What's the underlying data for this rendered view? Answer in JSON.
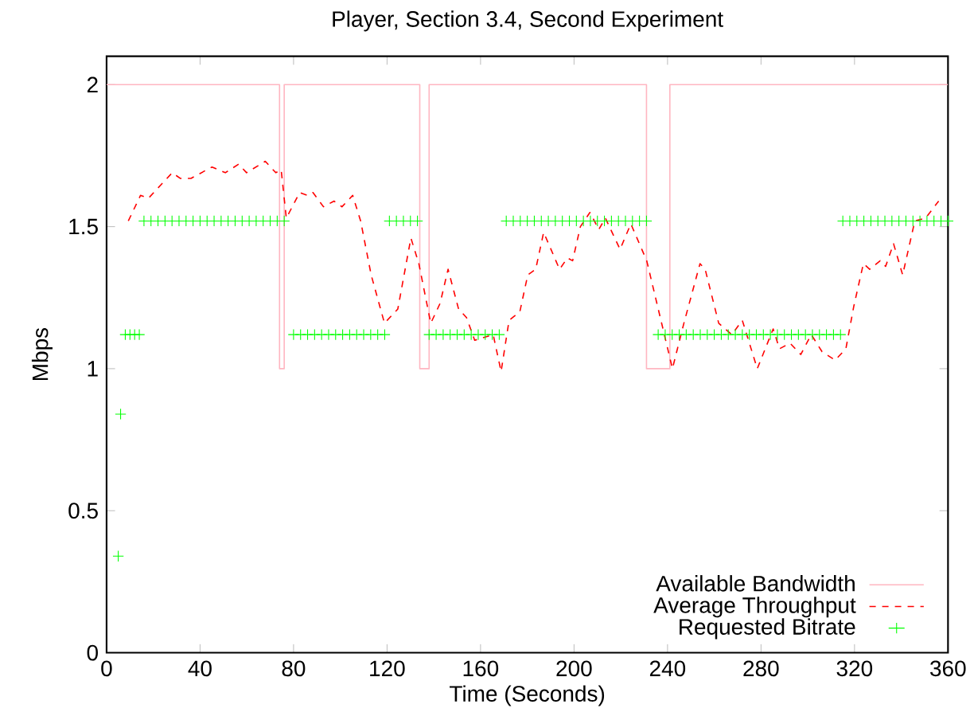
{
  "chart_data": {
    "type": "line",
    "title": "Player, Section 3.4, Second Experiment",
    "xlabel": "Time (Seconds)",
    "ylabel": "Mbps",
    "xlim": [
      0,
      360
    ],
    "xticks": [
      0,
      40,
      80,
      120,
      160,
      200,
      240,
      280,
      320,
      360
    ],
    "ylim": [
      0,
      2.1
    ],
    "yticks": [
      0,
      0.5,
      1,
      1.5,
      2
    ],
    "grid": false,
    "legend": "bottom right",
    "series": [
      {
        "name": "Available Bandwidth",
        "type": "step",
        "color": "#ffb6c1",
        "line_style": "solid",
        "marker": "none",
        "x": [
          0,
          74,
          76,
          134,
          138,
          231,
          241,
          360
        ],
        "values": [
          2,
          1,
          2,
          1,
          2,
          1,
          2,
          2
        ]
      },
      {
        "name": "Average Throughput",
        "color": "#ff0000",
        "line_style": "dashed",
        "marker": "none",
        "x": [
          9.3,
          14.5,
          17.9,
          28.1,
          31.5,
          36.1,
          45.1,
          50.8,
          56.5,
          59.9,
          67.9,
          72.4,
          74.7,
          76.9,
          82.6,
          86,
          88.3,
          92.8,
          97.3,
          100.7,
          105.3,
          108.7,
          113.2,
          118.9,
          124.6,
          130.2,
          133.6,
          138.7,
          142.7,
          146.1,
          150.6,
          154,
          157.5,
          165.4,
          168.8,
          172.2,
          176.8,
          180.2,
          183.6,
          187,
          193.8,
          197.2,
          199.4,
          202.7,
          206.8,
          210.6,
          213.4,
          219.7,
          224.3,
          231.1,
          236.9,
          242.1,
          247,
          253.9,
          256.1,
          261.9,
          267.5,
          272,
          278.4,
          285.2,
          287.9,
          292.4,
          297,
          301.5,
          306.1,
          311.7,
          316.3,
          319.7,
          323.8,
          326.5,
          331,
          333.3,
          336.7,
          340.6,
          345.8,
          350.4,
          356
        ],
        "values": [
          1.52,
          1.61,
          1.6,
          1.69,
          1.67,
          1.67,
          1.71,
          1.69,
          1.72,
          1.69,
          1.73,
          1.69,
          1.7,
          1.53,
          1.62,
          1.61,
          1.62,
          1.57,
          1.59,
          1.57,
          1.61,
          1.52,
          1.33,
          1.16,
          1.21,
          1.46,
          1.37,
          1.16,
          1.23,
          1.35,
          1.21,
          1.18,
          1.1,
          1.12,
          0.99,
          1.17,
          1.2,
          1.33,
          1.35,
          1.48,
          1.35,
          1.39,
          1.38,
          1.5,
          1.55,
          1.49,
          1.53,
          1.42,
          1.51,
          1.38,
          1.18,
          1.0,
          1.16,
          1.37,
          1.35,
          1.16,
          1.12,
          1.17,
          1.0,
          1.14,
          1.07,
          1.09,
          1.05,
          1.12,
          1.06,
          1.03,
          1.07,
          1.22,
          1.37,
          1.35,
          1.38,
          1.36,
          1.44,
          1.33,
          1.52,
          1.53,
          1.59
        ]
      },
      {
        "name": "Requested Bitrate",
        "type": "scatter",
        "color": "#00ff00",
        "marker": "cross",
        "x": [
          5,
          6,
          8,
          10,
          12,
          14,
          16,
          19,
          22,
          25,
          28,
          31,
          34,
          37,
          40,
          43,
          46,
          49,
          52,
          55,
          58,
          61,
          64,
          67,
          70,
          73,
          76,
          80,
          83,
          86,
          89,
          92,
          95,
          98,
          101,
          104,
          107,
          110,
          113,
          116,
          119,
          121,
          124,
          127,
          130,
          133,
          138,
          141,
          144,
          147,
          150,
          153,
          156,
          159,
          162,
          165,
          168,
          171,
          174,
          177,
          180,
          183,
          186,
          189,
          192,
          195,
          198,
          201,
          204,
          207,
          210,
          213,
          216,
          219,
          222,
          225,
          228,
          231,
          236,
          239,
          242,
          245,
          248,
          251,
          254,
          257,
          260,
          263,
          266,
          269,
          272,
          275,
          278,
          281,
          284,
          287,
          290,
          293,
          296,
          299,
          302,
          305,
          308,
          311,
          314,
          315,
          318,
          321,
          324,
          327,
          330,
          333,
          336,
          339,
          342,
          345,
          348,
          351,
          354,
          357,
          360
        ],
        "values": [
          0.34,
          0.84,
          1.12,
          1.12,
          1.12,
          1.12,
          1.52,
          1.52,
          1.52,
          1.52,
          1.52,
          1.52,
          1.52,
          1.52,
          1.52,
          1.52,
          1.52,
          1.52,
          1.52,
          1.52,
          1.52,
          1.52,
          1.52,
          1.52,
          1.52,
          1.52,
          1.52,
          1.12,
          1.12,
          1.12,
          1.12,
          1.12,
          1.12,
          1.12,
          1.12,
          1.12,
          1.12,
          1.12,
          1.12,
          1.12,
          1.12,
          1.52,
          1.52,
          1.52,
          1.52,
          1.52,
          1.12,
          1.12,
          1.12,
          1.12,
          1.12,
          1.12,
          1.12,
          1.12,
          1.12,
          1.12,
          1.12,
          1.52,
          1.52,
          1.52,
          1.52,
          1.52,
          1.52,
          1.52,
          1.52,
          1.52,
          1.52,
          1.52,
          1.52,
          1.52,
          1.52,
          1.52,
          1.52,
          1.52,
          1.52,
          1.52,
          1.52,
          1.52,
          1.12,
          1.12,
          1.12,
          1.12,
          1.12,
          1.12,
          1.12,
          1.12,
          1.12,
          1.12,
          1.12,
          1.12,
          1.12,
          1.12,
          1.12,
          1.12,
          1.12,
          1.12,
          1.12,
          1.12,
          1.12,
          1.12,
          1.12,
          1.12,
          1.12,
          1.12,
          1.12,
          1.52,
          1.52,
          1.52,
          1.52,
          1.52,
          1.52,
          1.52,
          1.52,
          1.52,
          1.52,
          1.52,
          1.52,
          1.52,
          1.52,
          1.52,
          1.52
        ]
      }
    ]
  }
}
